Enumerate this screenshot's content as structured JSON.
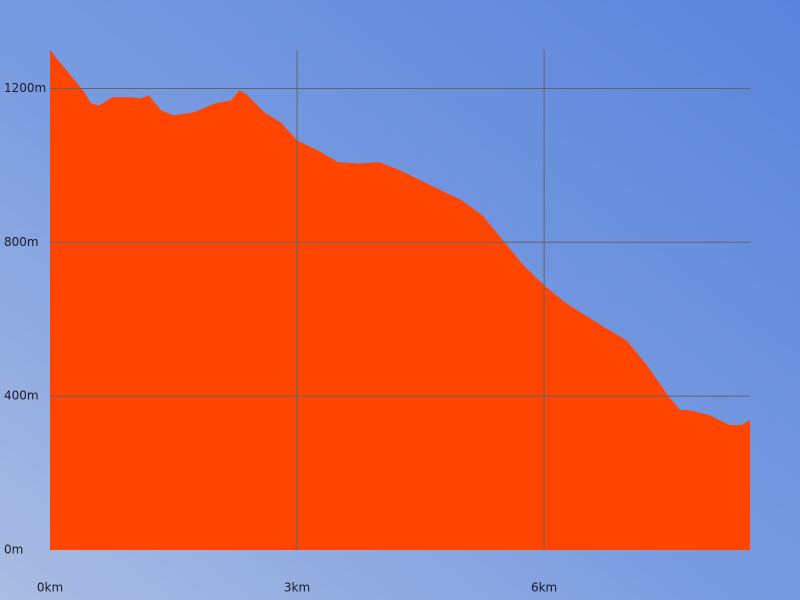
{
  "chart_data": {
    "type": "area",
    "x": [
      0,
      0.1,
      0.25,
      0.4,
      0.5,
      0.6,
      0.75,
      1.0,
      1.1,
      1.2,
      1.35,
      1.5,
      1.75,
      2.0,
      2.2,
      2.3,
      2.4,
      2.6,
      2.8,
      3.0,
      3.25,
      3.5,
      3.75,
      4.0,
      4.25,
      4.5,
      4.75,
      5.0,
      5.25,
      5.5,
      5.75,
      6.0,
      6.25,
      6.5,
      6.75,
      7.0,
      7.25,
      7.5,
      7.65,
      7.75,
      8.0,
      8.25,
      8.4,
      8.5
    ],
    "values": [
      1300,
      1273,
      1234,
      1195,
      1161,
      1156,
      1177,
      1177,
      1174,
      1182,
      1143,
      1130,
      1138,
      1161,
      1169,
      1195,
      1182,
      1138,
      1112,
      1065,
      1039,
      1008,
      1005,
      1008,
      987,
      961,
      935,
      909,
      870,
      805,
      740,
      688,
      644,
      610,
      577,
      545,
      480,
      403,
      364,
      364,
      351,
      325,
      325,
      338
    ],
    "color": "#ff4500",
    "xlim": [
      0,
      8.5
    ],
    "ylim": [
      0,
      1300
    ],
    "xticks": [
      {
        "value": 0,
        "label": "0km"
      },
      {
        "value": 3,
        "label": "3km"
      },
      {
        "value": 6,
        "label": "6km"
      }
    ],
    "yticks": [
      {
        "value": 0,
        "label": "0m"
      },
      {
        "value": 400,
        "label": "400m"
      },
      {
        "value": 800,
        "label": "800m"
      },
      {
        "value": 1200,
        "label": "1200m"
      }
    ],
    "grid": true
  }
}
